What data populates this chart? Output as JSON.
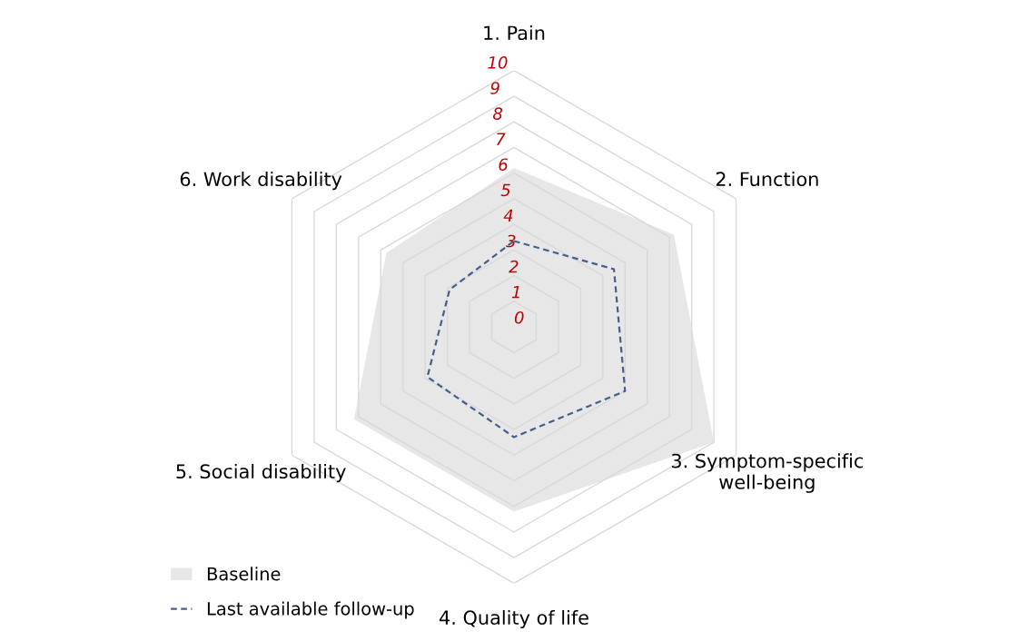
{
  "chart_data": {
    "type": "radar",
    "categories": [
      "1. Pain",
      "2. Function",
      "3. Symptom-specific\nwell-being",
      "4. Quality of life",
      "5. Social disability",
      "6. Work disability"
    ],
    "series": [
      {
        "name": "Baseline",
        "color": "#e7e7e7",
        "values": [
          6.2,
          7.2,
          9.0,
          7.2,
          7.2,
          5.75
        ]
      },
      {
        "name": "Last available follow-up",
        "line_style": "dashed",
        "color": "#44618c",
        "values": [
          3.35,
          4.5,
          5.0,
          4.3,
          3.9,
          2.9
        ]
      }
    ],
    "ylim": [
      0,
      10
    ],
    "yticks": [
      0,
      1,
      2,
      3,
      4,
      5,
      6,
      7,
      8,
      9,
      10
    ],
    "grid": true,
    "legend": "bottom left"
  }
}
